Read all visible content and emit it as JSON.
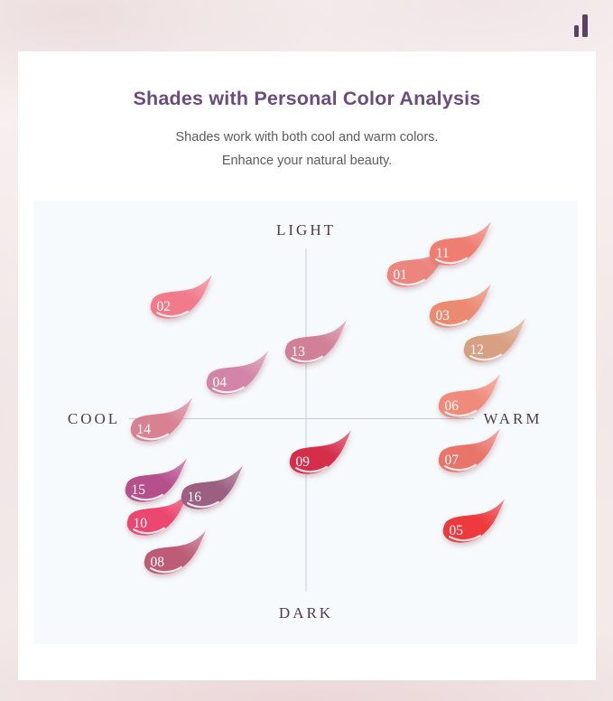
{
  "header": {
    "title": "Shades with Personal Color Analysis",
    "subtitle_line1": "Shades work with both cool and warm colors.",
    "subtitle_line2": "Enhance your natural beauty.",
    "title_color": "#6c4b7f",
    "subtitle_color": "#5b5b5b"
  },
  "logo": {
    "icon": "two-bar-brand-mark",
    "color": "#5c4164"
  },
  "chart_data": {
    "type": "scatter",
    "title": "Shades with Personal Color Analysis",
    "x_axis": {
      "left_label": "COOL",
      "right_label": "WARM"
    },
    "y_axis": {
      "top_label": "LIGHT",
      "bottom_label": "DARK"
    },
    "position_units": "percent_of_plot_area (x: 0=cool/left to 100=warm/right, y: 0=light/top to 100=dark/bottom)",
    "background": "#f6fafd",
    "axis_line_color": "#c4ccd5",
    "axis_label_color": "#4f3a52",
    "number_color": "#ffffff",
    "legend_position": "none",
    "grid": false,
    "points": [
      {
        "shade": "01",
        "color": "#ec857e",
        "x": 70.1,
        "y": 14.5
      },
      {
        "shade": "02",
        "color": "#f17a8b",
        "x": 26.6,
        "y": 21.6
      },
      {
        "shade": "03",
        "color": "#ea8a70",
        "x": 77.9,
        "y": 23.6
      },
      {
        "shade": "04",
        "color": "#d285a6",
        "x": 36.9,
        "y": 38.7
      },
      {
        "shade": "05",
        "color": "#ee3a3c",
        "x": 80.4,
        "y": 72.1
      },
      {
        "shade": "06",
        "color": "#f08b7b",
        "x": 79.6,
        "y": 44.0
      },
      {
        "shade": "07",
        "color": "#e9756a",
        "x": 79.6,
        "y": 56.2
      },
      {
        "shade": "08",
        "color": "#bd5c77",
        "x": 25.4,
        "y": 79.2
      },
      {
        "shade": "09",
        "color": "#d52e4b",
        "x": 52.2,
        "y": 56.6
      },
      {
        "shade": "10",
        "color": "#ec4770",
        "x": 22.3,
        "y": 70.5
      },
      {
        "shade": "11",
        "color": "#ef7e71",
        "x": 77.9,
        "y": 9.6
      },
      {
        "shade": "12",
        "color": "#d8a083",
        "x": 84.2,
        "y": 31.4
      },
      {
        "shade": "13",
        "color": "#d08097",
        "x": 51.3,
        "y": 31.8
      },
      {
        "shade": "14",
        "color": "#d88193",
        "x": 22.9,
        "y": 49.3
      },
      {
        "shade": "15",
        "color": "#b5508d",
        "x": 21.9,
        "y": 62.9
      },
      {
        "shade": "16",
        "color": "#9b5f82",
        "x": 32.2,
        "y": 64.6
      }
    ]
  }
}
